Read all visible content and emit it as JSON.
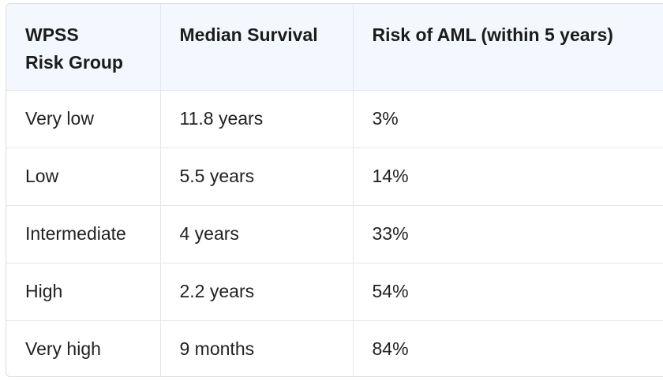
{
  "table": {
    "headers": {
      "group_line1": "WPSS",
      "group_line2": "Risk Group",
      "survival": "Median Survival",
      "risk": "Risk of AML (within 5 years)"
    },
    "rows": [
      {
        "group": "Very low",
        "survival": "11.8 years",
        "risk": "3%"
      },
      {
        "group": "Low",
        "survival": "5.5 years",
        "risk": "14%"
      },
      {
        "group": "Intermediate",
        "survival": "4 years",
        "risk": "33%"
      },
      {
        "group": "High",
        "survival": "2.2 years",
        "risk": "54%"
      },
      {
        "group": "Very high",
        "survival": "9 months",
        "risk": "84%"
      }
    ]
  }
}
